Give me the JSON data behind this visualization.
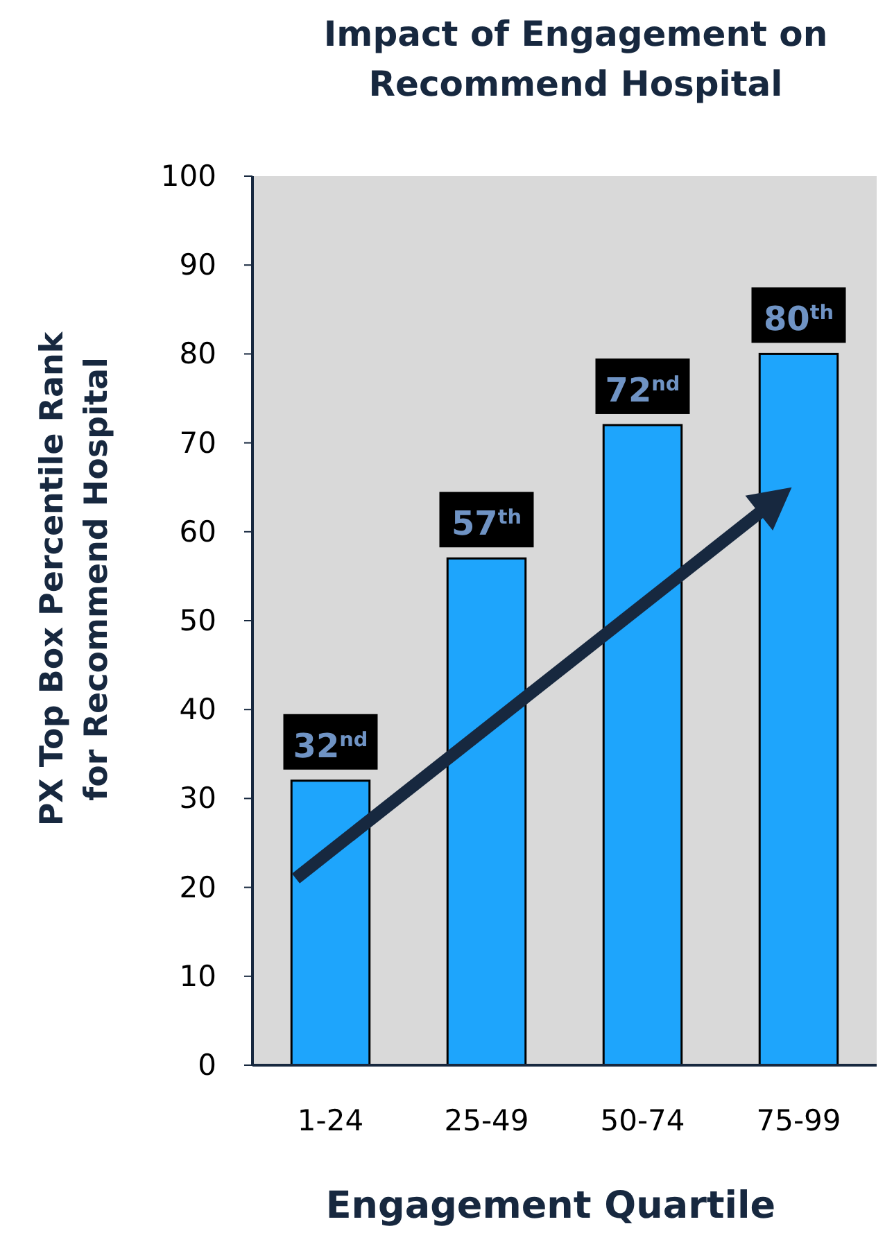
{
  "chart_data": {
    "type": "bar",
    "title": "Impact of Engagement on Recommend Hospital",
    "xlabel": "Engagement Quartile",
    "ylabel": "PX Top Box Percentile Rank for Recommend Hospital",
    "categories": [
      "1-24",
      "25-49",
      "50-74",
      "75-99"
    ],
    "values": [
      32,
      57,
      72,
      80
    ],
    "color": "#1ea5fc",
    "value_labels": [
      "32$^{nd}$",
      "57$^{th}$",
      "72$^{nd}$",
      "80$^{th}$"
    ],
    "ylim": [
      0,
      100
    ],
    "yticks": [
      0,
      10,
      20,
      30,
      40,
      50,
      60,
      70,
      80,
      90,
      100
    ],
    "grid": false
  }
}
